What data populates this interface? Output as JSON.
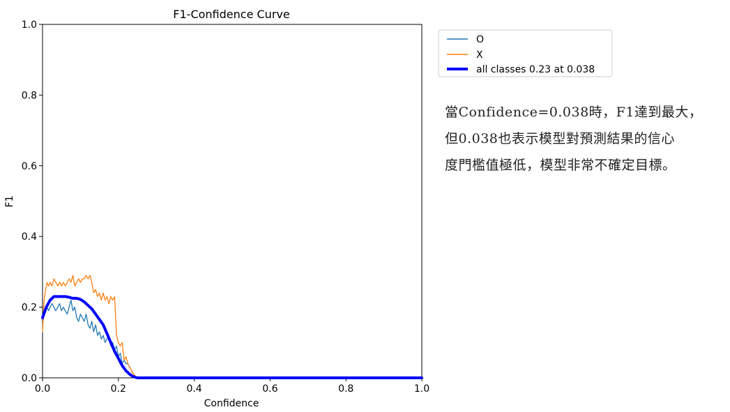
{
  "chart_data": {
    "type": "line",
    "title": "F1-Confidence Curve",
    "xlabel": "Confidence",
    "ylabel": "F1",
    "xlim": [
      0.0,
      1.0
    ],
    "ylim": [
      0.0,
      1.0
    ],
    "xticks": [
      "0.0",
      "0.2",
      "0.4",
      "0.6",
      "0.8",
      "1.0"
    ],
    "yticks": [
      "0.0",
      "0.2",
      "0.4",
      "0.6",
      "0.8",
      "1.0"
    ],
    "grid": false,
    "legend_position": "outside-right-top",
    "series": [
      {
        "name": "O",
        "color": "#1f77b4",
        "x": [
          0.0,
          0.004,
          0.008,
          0.012,
          0.016,
          0.02,
          0.025,
          0.03,
          0.035,
          0.04,
          0.045,
          0.05,
          0.055,
          0.06,
          0.065,
          0.07,
          0.075,
          0.08,
          0.085,
          0.09,
          0.095,
          0.1,
          0.105,
          0.11,
          0.115,
          0.12,
          0.125,
          0.13,
          0.135,
          0.14,
          0.145,
          0.15,
          0.155,
          0.16,
          0.165,
          0.17,
          0.175,
          0.18,
          0.185,
          0.19,
          0.195,
          0.2,
          0.205,
          0.21,
          0.215,
          0.22,
          0.225,
          0.23,
          0.235,
          0.24,
          0.245,
          0.25,
          0.3,
          0.5,
          0.8,
          1.0
        ],
        "y": [
          0.15,
          0.18,
          0.19,
          0.2,
          0.19,
          0.2,
          0.21,
          0.2,
          0.19,
          0.2,
          0.21,
          0.19,
          0.2,
          0.19,
          0.18,
          0.2,
          0.22,
          0.19,
          0.2,
          0.17,
          0.16,
          0.18,
          0.17,
          0.16,
          0.18,
          0.15,
          0.14,
          0.16,
          0.13,
          0.15,
          0.12,
          0.13,
          0.11,
          0.12,
          0.1,
          0.11,
          0.12,
          0.09,
          0.1,
          0.08,
          0.09,
          0.06,
          0.07,
          0.04,
          0.05,
          0.04,
          0.04,
          0.03,
          0.02,
          0.01,
          0.005,
          0.0,
          0.0,
          0.0,
          0.0,
          0.0
        ]
      },
      {
        "name": "X",
        "color": "#ff7f0e",
        "x": [
          0.0,
          0.004,
          0.008,
          0.012,
          0.016,
          0.02,
          0.025,
          0.03,
          0.035,
          0.04,
          0.045,
          0.05,
          0.055,
          0.06,
          0.065,
          0.07,
          0.075,
          0.08,
          0.085,
          0.09,
          0.095,
          0.1,
          0.105,
          0.11,
          0.115,
          0.12,
          0.125,
          0.13,
          0.135,
          0.14,
          0.145,
          0.15,
          0.155,
          0.16,
          0.165,
          0.17,
          0.175,
          0.18,
          0.185,
          0.19,
          0.195,
          0.2,
          0.205,
          0.21,
          0.215,
          0.22,
          0.225,
          0.23,
          0.235,
          0.24,
          0.245,
          0.25,
          0.3,
          0.5,
          0.8,
          1.0
        ],
        "y": [
          0.13,
          0.22,
          0.25,
          0.27,
          0.26,
          0.27,
          0.26,
          0.28,
          0.27,
          0.26,
          0.27,
          0.26,
          0.27,
          0.26,
          0.27,
          0.28,
          0.27,
          0.29,
          0.26,
          0.27,
          0.28,
          0.27,
          0.28,
          0.28,
          0.29,
          0.28,
          0.29,
          0.27,
          0.24,
          0.25,
          0.23,
          0.24,
          0.22,
          0.24,
          0.22,
          0.23,
          0.21,
          0.23,
          0.22,
          0.23,
          0.12,
          0.1,
          0.09,
          0.1,
          0.05,
          0.06,
          0.04,
          0.03,
          0.02,
          0.01,
          0.005,
          0.0,
          0.0,
          0.0,
          0.0,
          0.0
        ]
      },
      {
        "name": "all classes 0.23 at 0.038",
        "color": "#0000ff",
        "thick": true,
        "x": [
          0.0,
          0.01,
          0.02,
          0.03,
          0.038,
          0.05,
          0.06,
          0.07,
          0.08,
          0.09,
          0.1,
          0.11,
          0.12,
          0.13,
          0.14,
          0.15,
          0.16,
          0.17,
          0.18,
          0.19,
          0.2,
          0.21,
          0.22,
          0.23,
          0.24,
          0.25,
          0.3,
          0.5,
          0.8,
          1.0
        ],
        "y": [
          0.17,
          0.2,
          0.22,
          0.23,
          0.23,
          0.23,
          0.23,
          0.228,
          0.225,
          0.225,
          0.222,
          0.215,
          0.205,
          0.195,
          0.18,
          0.165,
          0.15,
          0.125,
          0.1,
          0.075,
          0.055,
          0.035,
          0.02,
          0.01,
          0.003,
          0.0,
          0.0,
          0.0,
          0.0,
          0.0
        ]
      }
    ]
  },
  "note": {
    "line1": "當Confidence=0.038時，F1達到最大，",
    "line2": "但0.038也表示模型對預測結果的信心",
    "line3": "度門檻值極低，模型非常不確定目標。"
  }
}
